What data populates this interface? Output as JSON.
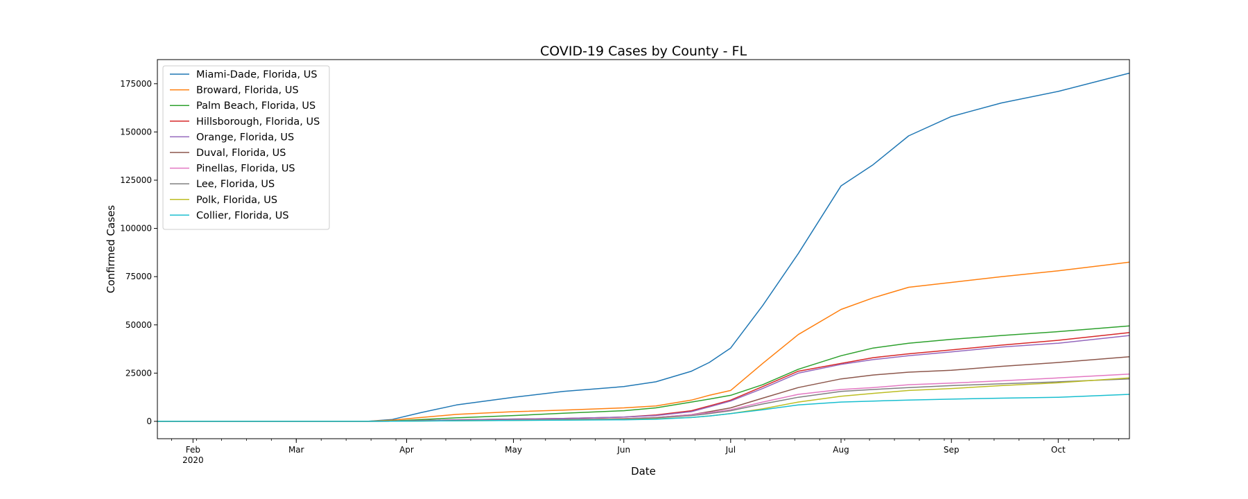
{
  "chart_data": {
    "type": "line",
    "title": "COVID-19 Cases by County - FL",
    "xlabel": "Date",
    "ylabel": "Confirmed Cases",
    "x_range": [
      "2020-01-22",
      "2020-10-21"
    ],
    "ylim": [
      -9000,
      187500
    ],
    "yticks": [
      0,
      25000,
      50000,
      75000,
      100000,
      125000,
      150000,
      175000
    ],
    "xticks_major": [
      {
        "date": "2020-02-01",
        "label": "Feb",
        "sublabel": "2020"
      },
      {
        "date": "2020-03-01",
        "label": "Mar",
        "sublabel": ""
      },
      {
        "date": "2020-04-01",
        "label": "Apr",
        "sublabel": ""
      },
      {
        "date": "2020-05-01",
        "label": "May",
        "sublabel": ""
      },
      {
        "date": "2020-06-01",
        "label": "Jun",
        "sublabel": ""
      },
      {
        "date": "2020-07-01",
        "label": "Jul",
        "sublabel": ""
      },
      {
        "date": "2020-08-01",
        "label": "Aug",
        "sublabel": ""
      },
      {
        "date": "2020-09-01",
        "label": "Sep",
        "sublabel": ""
      },
      {
        "date": "2020-10-01",
        "label": "Oct",
        "sublabel": ""
      }
    ],
    "grid": false,
    "legend_position": "top-left",
    "x": [
      "2020-01-22",
      "2020-03-21",
      "2020-03-28",
      "2020-04-05",
      "2020-04-15",
      "2020-05-01",
      "2020-05-15",
      "2020-06-01",
      "2020-06-10",
      "2020-06-20",
      "2020-06-25",
      "2020-07-01",
      "2020-07-10",
      "2020-07-20",
      "2020-08-01",
      "2020-08-10",
      "2020-08-20",
      "2020-09-01",
      "2020-09-15",
      "2020-10-01",
      "2020-10-21"
    ],
    "series": [
      {
        "name": "Miami-Dade, Florida, US",
        "color": "#1f77b4",
        "values": [
          0,
          0,
          1000,
          4500,
          8500,
          12500,
          15500,
          18000,
          20500,
          26000,
          30500,
          38000,
          60000,
          87000,
          122000,
          133000,
          148000,
          158000,
          165000,
          171000,
          180500
        ]
      },
      {
        "name": "Broward, Florida, US",
        "color": "#ff7f0e",
        "values": [
          0,
          0,
          600,
          2000,
          3600,
          5000,
          5800,
          7000,
          8000,
          11000,
          13500,
          16000,
          30000,
          45000,
          58000,
          64000,
          69500,
          72000,
          75000,
          78000,
          82500
        ]
      },
      {
        "name": "Palm Beach, Florida, US",
        "color": "#2ca02c",
        "values": [
          0,
          0,
          200,
          900,
          1800,
          3000,
          4200,
          5500,
          7000,
          10000,
          11500,
          13500,
          19000,
          27000,
          34000,
          38000,
          40500,
          42500,
          44500,
          46500,
          49500
        ]
      },
      {
        "name": "Hillsborough, Florida, US",
        "color": "#d62728",
        "values": [
          0,
          0,
          100,
          400,
          800,
          1200,
          1500,
          2200,
          3300,
          5500,
          8000,
          11000,
          18000,
          26000,
          30000,
          33000,
          35000,
          37000,
          39500,
          42000,
          46000
        ]
      },
      {
        "name": "Orange, Florida, US",
        "color": "#9467bd",
        "values": [
          0,
          0,
          100,
          400,
          800,
          1200,
          1500,
          2200,
          3000,
          5000,
          7500,
          10500,
          17000,
          25000,
          29500,
          32000,
          34000,
          36000,
          38500,
          40500,
          44500
        ]
      },
      {
        "name": "Duval, Florida, US",
        "color": "#8c564b",
        "values": [
          0,
          0,
          80,
          300,
          500,
          800,
          1000,
          1400,
          2000,
          3500,
          5000,
          7000,
          12000,
          17500,
          22000,
          24000,
          25500,
          26500,
          28500,
          30500,
          33500
        ]
      },
      {
        "name": "Pinellas, Florida, US",
        "color": "#e377c2",
        "values": [
          0,
          0,
          80,
          300,
          500,
          800,
          1000,
          1300,
          2000,
          3500,
          4500,
          6000,
          10000,
          14000,
          16500,
          17500,
          19000,
          19800,
          21000,
          22500,
          24500
        ]
      },
      {
        "name": "Lee, Florida, US",
        "color": "#7f7f7f",
        "values": [
          0,
          0,
          60,
          200,
          400,
          700,
          900,
          1200,
          1800,
          3000,
          4000,
          5500,
          9000,
          12500,
          15500,
          16500,
          17500,
          18500,
          19500,
          20500,
          22000
        ]
      },
      {
        "name": "Polk, Florida, US",
        "color": "#bcbd22",
        "values": [
          0,
          0,
          40,
          150,
          300,
          500,
          700,
          900,
          1300,
          2000,
          2800,
          4000,
          6500,
          10000,
          13000,
          14500,
          16000,
          17000,
          18500,
          20000,
          22500
        ]
      },
      {
        "name": "Collier, Florida, US",
        "color": "#17becf",
        "values": [
          0,
          0,
          40,
          150,
          300,
          500,
          600,
          800,
          1100,
          2000,
          2800,
          4000,
          6000,
          8500,
          10000,
          10500,
          11000,
          11500,
          12000,
          12500,
          14000
        ]
      }
    ]
  }
}
